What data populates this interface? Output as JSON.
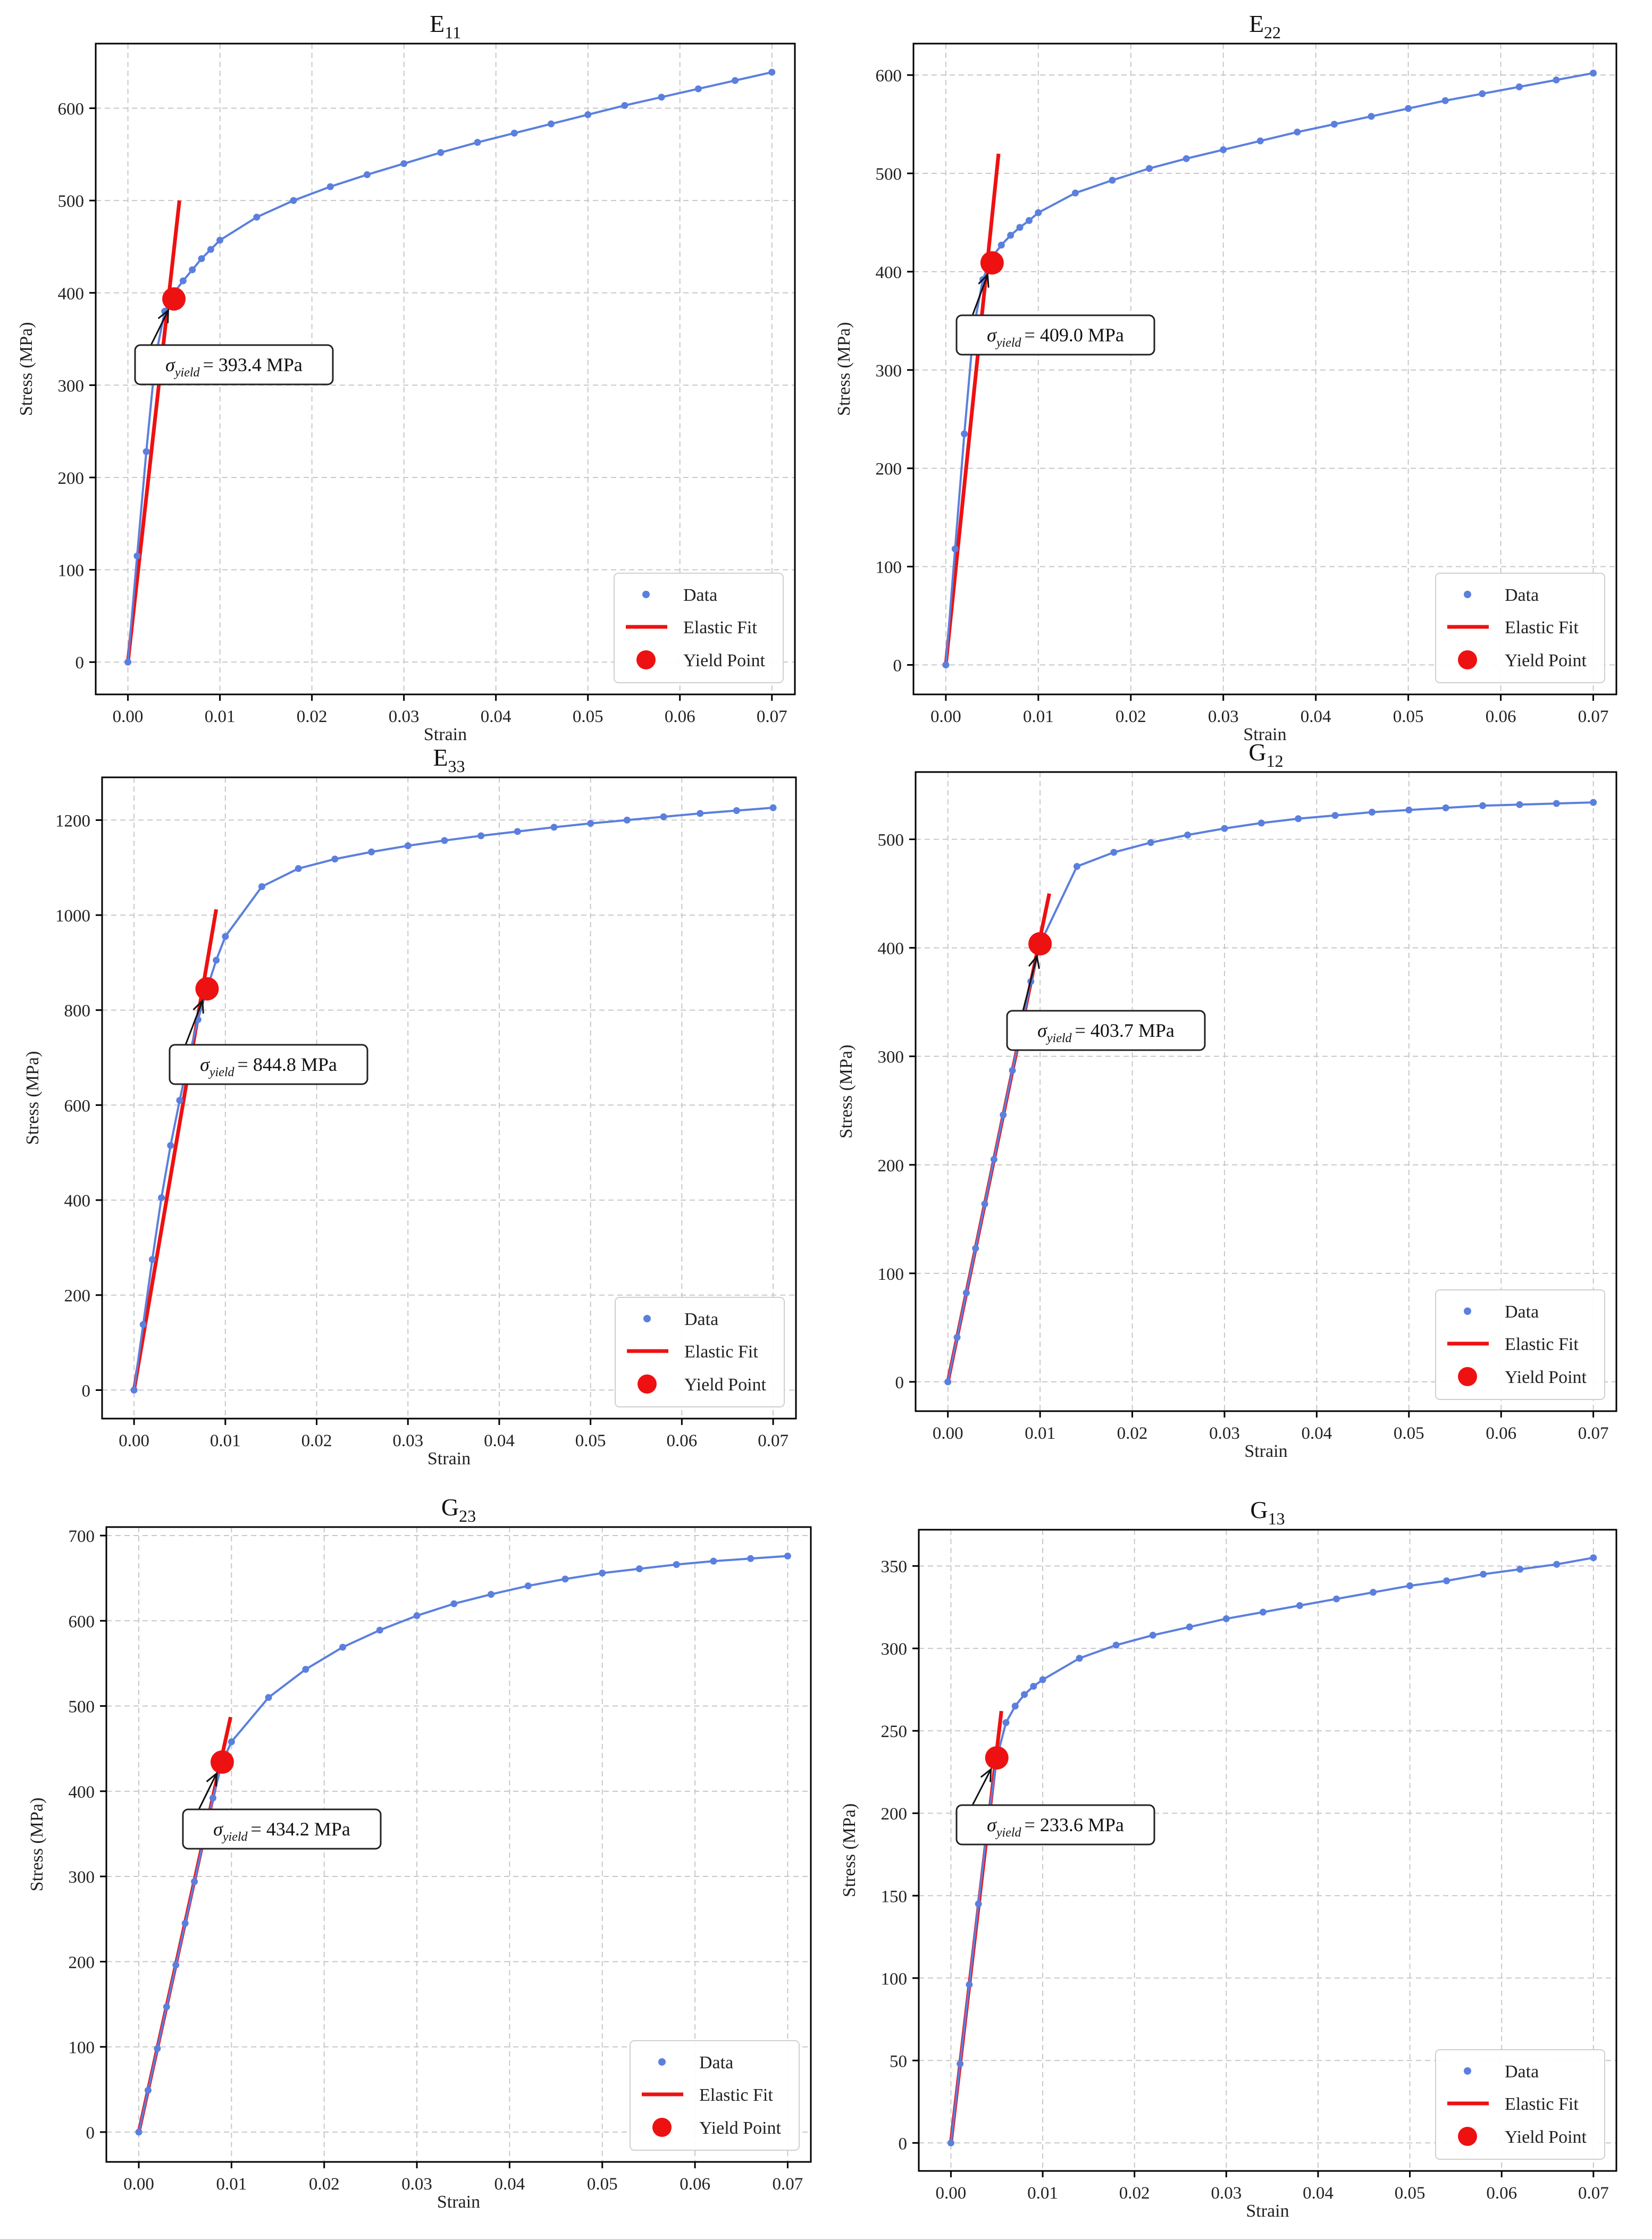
{
  "colors": {
    "data": "#5b7fde",
    "fit": "#ee1111",
    "yield": "#ee1111",
    "grid": "#c8c8c8",
    "axis": "#000000"
  },
  "legend_labels": [
    "Data",
    "Elastic Fit",
    "Yield Point"
  ],
  "chart_data": [
    {
      "type": "line",
      "title_main": "E",
      "title_sub": "11",
      "xlabel": "Strain",
      "ylabel": "Stress (MPa)",
      "xlim": [
        -0.0035,
        0.0725
      ],
      "ylim": [
        -35,
        670
      ],
      "xticks": [
        "0.00",
        "0.01",
        "0.02",
        "0.03",
        "0.04",
        "0.05",
        "0.06",
        "0.07"
      ],
      "yticks": [
        "0",
        "100",
        "200",
        "300",
        "400",
        "500",
        "600"
      ],
      "legend_position": "lower-right",
      "series": [
        {
          "name": "Data",
          "x": [
            0,
            0.001,
            0.002,
            0.003,
            0.004,
            0.005,
            0.006,
            0.007,
            0.008,
            0.009,
            0.01,
            0.014,
            0.018,
            0.022,
            0.026,
            0.03,
            0.034,
            0.038,
            0.042,
            0.046,
            0.05,
            0.054,
            0.058,
            0.062,
            0.066,
            0.07
          ],
          "y": [
            0,
            115,
            228,
            330,
            380,
            400,
            413,
            425,
            437,
            447,
            457,
            482,
            500,
            515,
            528,
            540,
            552,
            563,
            573,
            583,
            593,
            603,
            612,
            621,
            630,
            639
          ]
        },
        {
          "name": "Elastic Fit",
          "x": [
            0,
            0.0056
          ],
          "y": [
            0,
            500
          ]
        }
      ],
      "yield_point": {
        "x": 0.005,
        "y": 393.4
      },
      "annotation": {
        "text": "= 393.4 MPa",
        "sigma": "σ",
        "sub": "yield"
      }
    },
    {
      "type": "line",
      "title_main": "E",
      "title_sub": "22",
      "xlabel": "Strain",
      "ylabel": "Stress (MPa)",
      "xlim": [
        -0.0035,
        0.0725
      ],
      "ylim": [
        -30,
        632
      ],
      "xticks": [
        "0.00",
        "0.01",
        "0.02",
        "0.03",
        "0.04",
        "0.05",
        "0.06",
        "0.07"
      ],
      "yticks": [
        "0",
        "100",
        "200",
        "300",
        "400",
        "500",
        "600"
      ],
      "legend_position": "lower-right",
      "series": [
        {
          "name": "Data",
          "x": [
            0,
            0.001,
            0.002,
            0.003,
            0.004,
            0.005,
            0.006,
            0.007,
            0.008,
            0.009,
            0.01,
            0.014,
            0.018,
            0.022,
            0.026,
            0.03,
            0.034,
            0.038,
            0.042,
            0.046,
            0.05,
            0.054,
            0.058,
            0.062,
            0.066,
            0.07
          ],
          "y": [
            0,
            118,
            235,
            342,
            392,
            415,
            427,
            437,
            445,
            452,
            460,
            480,
            493,
            505,
            515,
            524,
            533,
            542,
            550,
            558,
            566,
            574,
            581,
            588,
            595,
            602
          ]
        },
        {
          "name": "Elastic Fit",
          "x": [
            0,
            0.0057
          ],
          "y": [
            0,
            520
          ]
        }
      ],
      "yield_point": {
        "x": 0.005,
        "y": 409.0
      },
      "annotation": {
        "text": "= 409.0 MPa",
        "sigma": "σ",
        "sub": "yield"
      }
    },
    {
      "type": "line",
      "title_main": "E",
      "title_sub": "33",
      "xlabel": "Strain",
      "ylabel": "Stress (MPa)",
      "xlim": [
        -0.0035,
        0.0725
      ],
      "ylim": [
        -60,
        1290
      ],
      "xticks": [
        "0.00",
        "0.01",
        "0.02",
        "0.03",
        "0.04",
        "0.05",
        "0.06",
        "0.07"
      ],
      "yticks": [
        "0",
        "200",
        "400",
        "600",
        "800",
        "1000",
        "1200"
      ],
      "legend_position": "lower-right",
      "series": [
        {
          "name": "Data",
          "x": [
            0,
            0.001,
            0.002,
            0.003,
            0.004,
            0.005,
            0.006,
            0.007,
            0.008,
            0.009,
            0.01,
            0.014,
            0.018,
            0.022,
            0.026,
            0.03,
            0.034,
            0.038,
            0.042,
            0.046,
            0.05,
            0.054,
            0.058,
            0.062,
            0.066,
            0.07
          ],
          "y": [
            0,
            138,
            275,
            405,
            515,
            610,
            700,
            780,
            845,
            905,
            955,
            1060,
            1098,
            1118,
            1133,
            1146,
            1157,
            1167,
            1176,
            1185,
            1193,
            1200,
            1207,
            1214,
            1220,
            1226
          ]
        },
        {
          "name": "Elastic Fit",
          "x": [
            0,
            0.009
          ],
          "y": [
            0,
            1012
          ]
        }
      ],
      "yield_point": {
        "x": 0.008,
        "y": 844.8
      },
      "annotation": {
        "text": "= 844.8 MPa",
        "sigma": "σ",
        "sub": "yield"
      }
    },
    {
      "type": "line",
      "title_main": "G",
      "title_sub": "12",
      "xlabel": "Strain",
      "ylabel": "Stress (MPa)",
      "xlim": [
        -0.0035,
        0.0725
      ],
      "ylim": [
        -27,
        562
      ],
      "xticks": [
        "0.00",
        "0.01",
        "0.02",
        "0.03",
        "0.04",
        "0.05",
        "0.06",
        "0.07"
      ],
      "yticks": [
        "0",
        "100",
        "200",
        "300",
        "400",
        "500"
      ],
      "legend_position": "lower-right",
      "series": [
        {
          "name": "Data",
          "x": [
            0,
            0.001,
            0.002,
            0.003,
            0.004,
            0.005,
            0.006,
            0.007,
            0.008,
            0.009,
            0.01,
            0.014,
            0.018,
            0.022,
            0.026,
            0.03,
            0.034,
            0.038,
            0.042,
            0.046,
            0.05,
            0.054,
            0.058,
            0.062,
            0.066,
            0.07
          ],
          "y": [
            0,
            41,
            82,
            123,
            164,
            205,
            246,
            287,
            328,
            369,
            403.7,
            475,
            488,
            497,
            504,
            510,
            515,
            519,
            522,
            525,
            527,
            529,
            531,
            532,
            533,
            534
          ]
        },
        {
          "name": "Elastic Fit",
          "x": [
            0,
            0.011
          ],
          "y": [
            0,
            450
          ]
        }
      ],
      "yield_point": {
        "x": 0.01,
        "y": 403.7
      },
      "annotation": {
        "text": "= 403.7 MPa",
        "sigma": "σ",
        "sub": "yield"
      }
    },
    {
      "type": "line",
      "title_main": "G",
      "title_sub": "23",
      "xlabel": "Strain",
      "ylabel": "Stress (MPa)",
      "xlim": [
        -0.0035,
        0.0725
      ],
      "ylim": [
        -35,
        710
      ],
      "xticks": [
        "0.00",
        "0.01",
        "0.02",
        "0.03",
        "0.04",
        "0.05",
        "0.06",
        "0.07"
      ],
      "yticks": [
        "0",
        "100",
        "200",
        "300",
        "400",
        "500",
        "600",
        "700"
      ],
      "legend_position": "lower-right",
      "series": [
        {
          "name": "Data",
          "x": [
            0,
            0.001,
            0.002,
            0.003,
            0.004,
            0.005,
            0.006,
            0.007,
            0.008,
            0.009,
            0.01,
            0.014,
            0.018,
            0.022,
            0.026,
            0.03,
            0.034,
            0.038,
            0.042,
            0.046,
            0.05,
            0.054,
            0.058,
            0.062,
            0.066,
            0.07
          ],
          "y": [
            0,
            49,
            98,
            147,
            196,
            245,
            294,
            343,
            392,
            434,
            458,
            510,
            543,
            569,
            589,
            606,
            620,
            631,
            641,
            649,
            656,
            661,
            666,
            670,
            673,
            676
          ]
        },
        {
          "name": "Elastic Fit",
          "x": [
            0,
            0.0099
          ],
          "y": [
            0,
            487
          ]
        }
      ],
      "yield_point": {
        "x": 0.009,
        "y": 434.2
      },
      "annotation": {
        "text": "= 434.2 MPa",
        "sigma": "σ",
        "sub": "yield"
      }
    },
    {
      "type": "line",
      "title_main": "G",
      "title_sub": "13",
      "xlabel": "Strain",
      "ylabel": "Stress (MPa)",
      "xlim": [
        -0.0035,
        0.0725
      ],
      "ylim": [
        -17,
        372
      ],
      "xticks": [
        "0.00",
        "0.01",
        "0.02",
        "0.03",
        "0.04",
        "0.05",
        "0.06",
        "0.07"
      ],
      "yticks": [
        "0",
        "50",
        "100",
        "150",
        "200",
        "250",
        "300",
        "350"
      ],
      "legend_position": "lower-right",
      "series": [
        {
          "name": "Data",
          "x": [
            0,
            0.001,
            0.002,
            0.003,
            0.004,
            0.005,
            0.006,
            0.007,
            0.008,
            0.009,
            0.01,
            0.014,
            0.018,
            0.022,
            0.026,
            0.03,
            0.034,
            0.038,
            0.042,
            0.046,
            0.05,
            0.054,
            0.058,
            0.062,
            0.066,
            0.07
          ],
          "y": [
            0,
            48,
            96,
            145,
            193,
            233.6,
            255,
            265,
            272,
            277,
            281,
            294,
            302,
            308,
            313,
            318,
            322,
            326,
            330,
            334,
            338,
            341,
            345,
            348,
            351,
            355
          ]
        },
        {
          "name": "Elastic Fit",
          "x": [
            0,
            0.0055
          ],
          "y": [
            0,
            262
          ]
        }
      ],
      "yield_point": {
        "x": 0.005,
        "y": 233.6
      },
      "annotation": {
        "text": "= 233.6 MPa",
        "sigma": "σ",
        "sub": "yield"
      }
    }
  ]
}
